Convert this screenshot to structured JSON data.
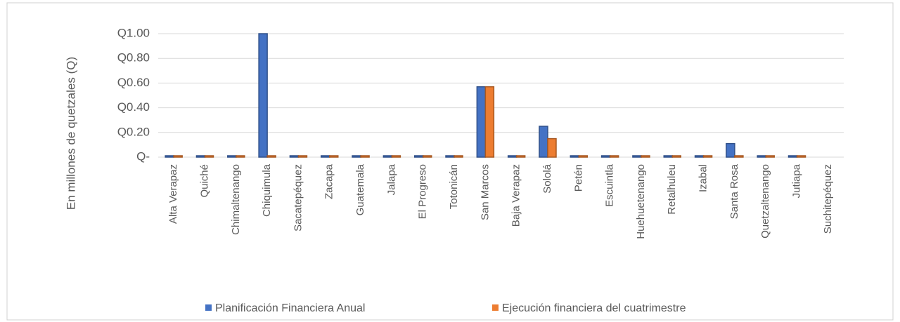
{
  "chart_data": {
    "type": "bar",
    "y_label": "En millones de quetzales (Q)",
    "categories": [
      "Alta Verapaz",
      "Quiché",
      "Chimaltenango",
      "Chiquimula",
      "Sacatepéquez",
      "Zacapa",
      "Guatemala",
      "Jalapa",
      "El Progreso",
      "Totonicán",
      "San Marcos",
      "Baja Verapaz",
      "Sololá",
      "Petén",
      "Escuintla",
      "Huehuetenango",
      "Retalhuleu",
      "Izabal",
      "Santa Rosa",
      "Quetzaltenango",
      "Jutiapa",
      "Suchitepéquez"
    ],
    "series": [
      {
        "name": "Planificación Financiera Anual",
        "color": "#4472c4",
        "values": [
          0,
          0,
          0,
          1.0,
          0,
          0,
          0,
          0,
          0,
          0,
          0.57,
          0,
          0.25,
          0,
          0,
          0,
          0,
          0,
          0.11,
          0,
          0,
          null
        ]
      },
      {
        "name": "Ejecución financiera del cuatrimestre",
        "color": "#ed7d31",
        "values": [
          0,
          0,
          0,
          0,
          0,
          0,
          0,
          0,
          0,
          0,
          0.57,
          0,
          0.15,
          0,
          0,
          0,
          0,
          0,
          0,
          0,
          0,
          null
        ]
      }
    ],
    "ylim": [
      0,
      1.0
    ],
    "yticks": [
      {
        "value": 0,
        "label": "Q-"
      },
      {
        "value": 0.2,
        "label": "Q0.20"
      },
      {
        "value": 0.4,
        "label": "Q0.40"
      },
      {
        "value": 0.6,
        "label": "Q0.60"
      },
      {
        "value": 0.8,
        "label": "Q0.80"
      },
      {
        "value": 1.0,
        "label": "Q1.00"
      }
    ],
    "grid": true
  }
}
